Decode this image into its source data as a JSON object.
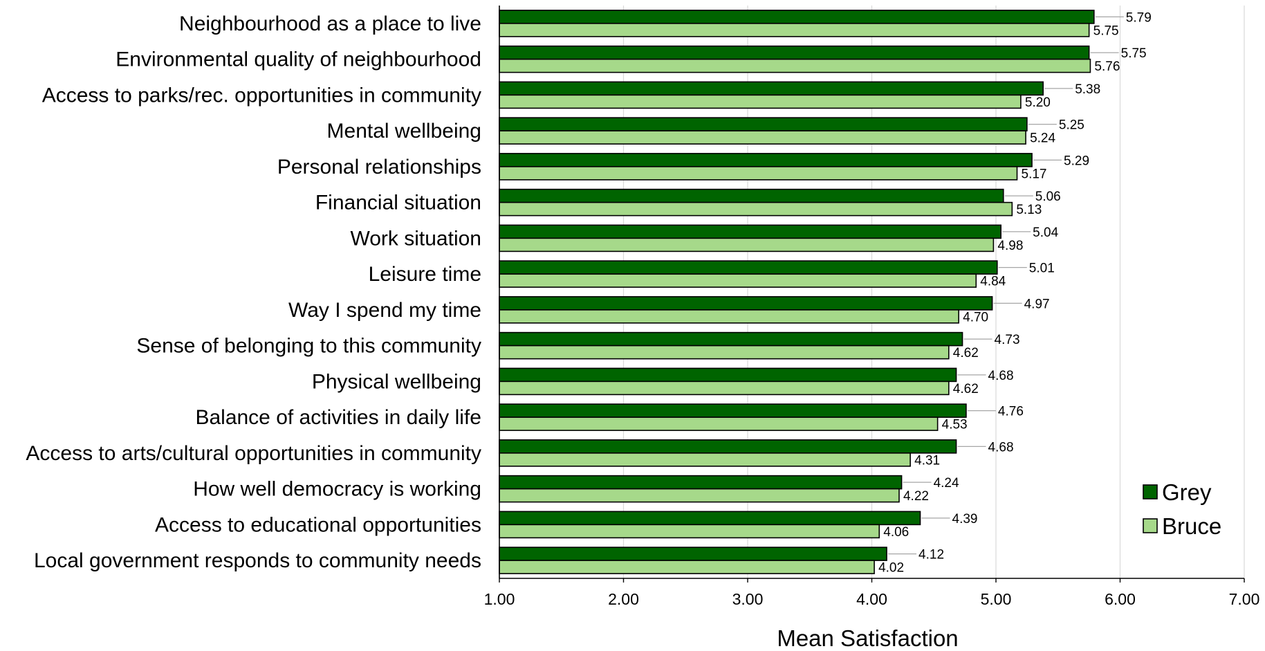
{
  "chart_data": {
    "type": "bar",
    "orientation": "horizontal",
    "xlabel": "Mean Satisfaction",
    "ylabel": "",
    "xlim": [
      1,
      7
    ],
    "x_ticks": [
      "1.00",
      "2.00",
      "3.00",
      "4.00",
      "5.00",
      "6.00",
      "7.00"
    ],
    "grid": "vertical",
    "legend_position": "bottom-right",
    "categories": [
      "Neighbourhood as a place to live",
      "Environmental quality of neighbourhood",
      "Access to parks/rec. opportunities in community",
      "Mental wellbeing",
      "Personal relationships",
      "Financial situation",
      "Work situation",
      "Leisure time",
      "Way I spend my time",
      "Sense of belonging to this community",
      "Physical wellbeing",
      "Balance of activities in daily life",
      "Access to arts/cultural opportunities in community",
      "How well democracy is working",
      "Access to educational opportunities",
      "Local government responds to community needs"
    ],
    "series": [
      {
        "name": "Grey",
        "color": "#006400",
        "values": [
          5.79,
          5.75,
          5.38,
          5.25,
          5.29,
          5.06,
          5.04,
          5.01,
          4.97,
          4.73,
          4.68,
          4.76,
          4.68,
          4.24,
          4.39,
          4.12
        ],
        "labels": [
          "5.79",
          "5.75",
          "5.38",
          "5.25",
          "5.29",
          "5.06",
          "5.04",
          "5.01",
          "4.97",
          "4.73",
          "4.68",
          "4.76",
          "4.68",
          "4.24",
          "4.39",
          "4.12"
        ]
      },
      {
        "name": "Bruce",
        "color": "#a6d98a",
        "values": [
          5.75,
          5.76,
          5.2,
          5.24,
          5.17,
          5.13,
          4.98,
          4.84,
          4.7,
          4.62,
          4.62,
          4.53,
          4.31,
          4.22,
          4.06,
          4.02
        ],
        "labels": [
          "5.75",
          "5.76",
          "5.20",
          "5.24",
          "5.17",
          "5.13",
          "4.98",
          "4.84",
          "4.70",
          "4.62",
          "4.62",
          "4.53",
          "4.31",
          "4.22",
          "4.06",
          "4.02"
        ]
      }
    ]
  }
}
